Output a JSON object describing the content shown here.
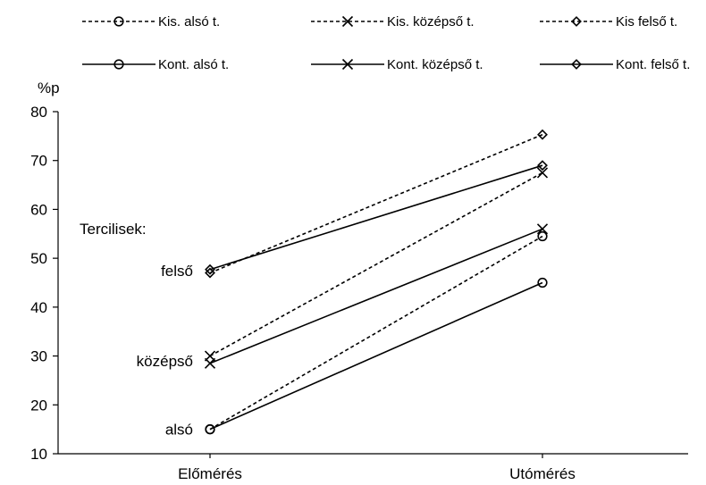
{
  "chart_data": {
    "type": "line",
    "title": "",
    "xlabel": "",
    "ylabel": "%p",
    "ylim": [
      10,
      80
    ],
    "yticks": [
      10,
      20,
      30,
      40,
      50,
      60,
      70,
      80
    ],
    "categories": [
      "Előmérés",
      "Utómérés"
    ],
    "grid": false,
    "legend_position": "top",
    "series": [
      {
        "name": "Kis. alsó t.",
        "values": [
          15,
          54.5
        ],
        "style": "dashed",
        "marker": "circle"
      },
      {
        "name": "Kis. középső t.",
        "values": [
          30,
          67.5
        ],
        "style": "dashed",
        "marker": "x"
      },
      {
        "name": "Kis felső t.",
        "values": [
          47,
          75.3
        ],
        "style": "dashed",
        "marker": "diamond"
      },
      {
        "name": "Kont. alsó t.",
        "values": [
          15,
          45
        ],
        "style": "solid",
        "marker": "circle"
      },
      {
        "name": "Kont. középső t.",
        "values": [
          28.5,
          56
        ],
        "style": "solid",
        "marker": "x"
      },
      {
        "name": "Kont. felső t.",
        "values": [
          47.7,
          69
        ],
        "style": "solid",
        "marker": "diamond"
      }
    ],
    "annotations": {
      "heading": "Tercilisek:",
      "items": [
        {
          "text": "felső",
          "value": 47.5
        },
        {
          "text": "középső",
          "value": 29
        },
        {
          "text": "alsó",
          "value": 15
        }
      ]
    },
    "line_color": "#000000"
  }
}
